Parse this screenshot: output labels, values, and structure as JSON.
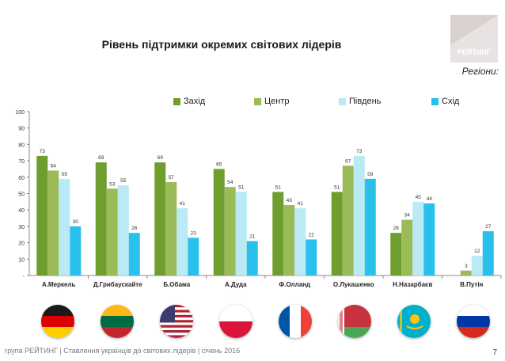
{
  "header": {
    "title": "Рівень підтримки окремих світових лідерів",
    "subtitle": "Регіони:",
    "logo_text": "РЕЙТИНГ"
  },
  "colors": {
    "zahid": "#6f9e2f",
    "tsentr": "#9bbb59",
    "pivden": "#b9eaf6",
    "skhid": "#29c0ec"
  },
  "chart_data": {
    "type": "bar",
    "title": "Рівень підтримки окремих світових лідерів",
    "ylim": [
      0,
      100
    ],
    "yticks": [
      "-",
      "10",
      "20",
      "30",
      "40",
      "50",
      "60",
      "70",
      "80",
      "90",
      "100"
    ],
    "grid": false,
    "legend_position": "top",
    "categories": [
      "А.Меркель",
      "Д.Грибаускайте",
      "Б.Обама",
      "А.Дуда",
      "Ф.Олланд",
      "О.Лукашенко",
      "Н.Назарбаєв",
      "В.Путін"
    ],
    "series": [
      {
        "name": "Захід",
        "values": [
          73,
          69,
          69,
          65,
          51,
          51,
          26,
          null
        ]
      },
      {
        "name": "Центр",
        "values": [
          64,
          53,
          57,
          54,
          43,
          67,
          34,
          3
        ]
      },
      {
        "name": "Південь",
        "values": [
          59,
          55,
          41,
          51,
          41,
          73,
          45,
          12
        ]
      },
      {
        "name": "Схід",
        "values": [
          30,
          26,
          23,
          21,
          22,
          59,
          44,
          27
        ]
      }
    ]
  },
  "flags": [
    "germany-flag",
    "lithuania-flag",
    "usa-flag",
    "poland-flag",
    "france-flag",
    "belarus-flag",
    "kazakhstan-flag",
    "russia-flag"
  ],
  "footer": {
    "text": "група РЕЙТИНГ | Ставлення українців до світових лідерів | січень 2016",
    "page": "7"
  }
}
